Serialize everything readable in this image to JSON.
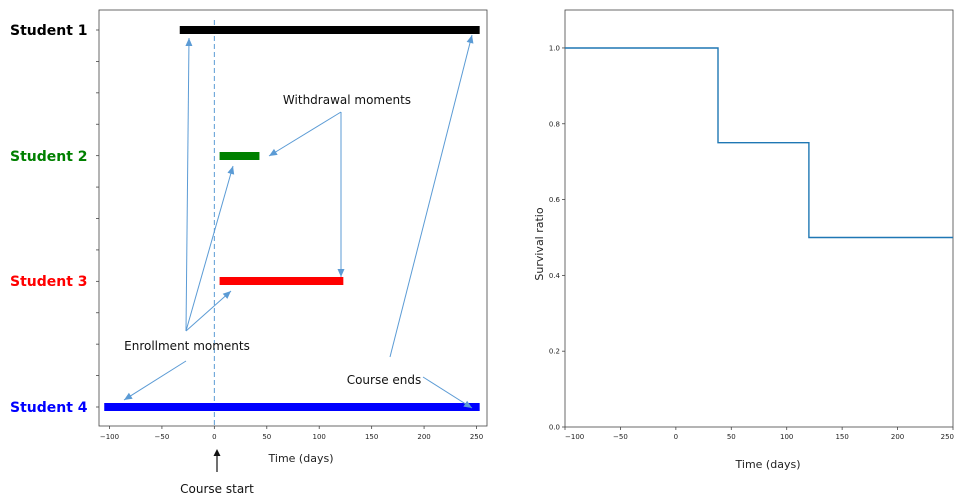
{
  "chart_data": [
    {
      "type": "timeline",
      "xlabel": "Time (days)",
      "xlim": [
        -110,
        260
      ],
      "xticks": [
        -100,
        -50,
        0,
        50,
        100,
        150,
        200,
        250
      ],
      "students": [
        {
          "label": "Student 1",
          "color": "#000000",
          "start": -33,
          "end": 253
        },
        {
          "label": "Student 2",
          "color": "#008000",
          "start": 5,
          "end": 43
        },
        {
          "label": "Student 3",
          "color": "#ff0000",
          "start": 5,
          "end": 123
        },
        {
          "label": "Student 4",
          "color": "#0000ff",
          "start": -105,
          "end": 253
        }
      ],
      "course_start_x": 0,
      "annotations": {
        "withdrawal": "Withdrawal moments",
        "enrollment": "Enrollment moments",
        "course_ends": "Course ends",
        "course_start": "Course start"
      },
      "arrow_color": "#5b9bd5"
    },
    {
      "type": "line",
      "step": true,
      "xlabel": "Time (days)",
      "ylabel": "Survival ratio",
      "xlim": [
        -100,
        250
      ],
      "ylim": [
        0.0,
        1.05
      ],
      "xticks": [
        -100,
        -50,
        0,
        50,
        100,
        150,
        200,
        250
      ],
      "yticks": [
        0.0,
        0.2,
        0.4,
        0.6,
        0.8,
        1.0
      ],
      "series": [
        {
          "color": "#1f77b4",
          "x": [
            -100,
            38,
            38,
            120,
            120,
            250
          ],
          "y": [
            1.0,
            1.0,
            0.75,
            0.75,
            0.5,
            0.5
          ]
        }
      ]
    }
  ]
}
